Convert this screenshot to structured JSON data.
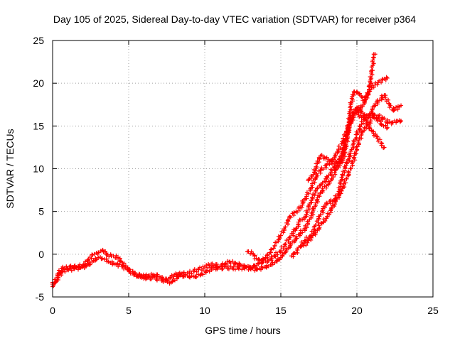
{
  "chart_data": {
    "type": "scatter",
    "title": "Day 105 of 2025, Sidereal Day-to-day VTEC variation (SDTVAR) for receiver p364",
    "xlabel": "GPS time / hours",
    "ylabel": "SDTVAR / TECUs",
    "xlim": [
      0,
      25
    ],
    "ylim": [
      -5,
      25
    ],
    "xticks": [
      0,
      5,
      10,
      15,
      20,
      25
    ],
    "yticks": [
      -5,
      0,
      5,
      10,
      15,
      20,
      25
    ],
    "grid": true,
    "marker": "plus",
    "color": "#ff0000",
    "series": [
      {
        "x": [
          0.0,
          0.2,
          0.4,
          0.6,
          0.8,
          1.0,
          1.3,
          1.6,
          2.0,
          2.3,
          2.6,
          3.0,
          3.3,
          3.6,
          4.0,
          4.3,
          4.6,
          5.0,
          5.3,
          5.6,
          6.0,
          6.3,
          6.6,
          7.0,
          7.3,
          7.6,
          8.0,
          8.3,
          8.6,
          9.0,
          9.3,
          9.6,
          10.0,
          10.3,
          10.6,
          11.0,
          11.3,
          11.6,
          12.0,
          12.3,
          12.6,
          13.0,
          13.3,
          13.6,
          14.0,
          14.3,
          14.6,
          15.0,
          15.3,
          15.6,
          16.0,
          16.3,
          16.6,
          17.0,
          17.3,
          17.6,
          18.0,
          18.3,
          18.6,
          19.0,
          19.3,
          19.6,
          20.0,
          20.3,
          20.6,
          21.0,
          21.3,
          21.6,
          22.0
        ],
        "y": [
          -3.8,
          -3.3,
          -2.2,
          -1.7,
          -1.6,
          -1.6,
          -1.5,
          -1.5,
          -1.3,
          -0.8,
          -0.1,
          0.2,
          0.5,
          -0.1,
          -0.2,
          -0.4,
          -1.0,
          -1.8,
          -2.2,
          -2.5,
          -2.6,
          -2.5,
          -2.4,
          -2.6,
          -2.9,
          -2.9,
          -2.4,
          -2.3,
          -2.3,
          -2.2,
          -2.0,
          -1.8,
          -1.5,
          -1.3,
          -1.3,
          -1.4,
          -1.2,
          -0.9,
          -1.0,
          -1.2,
          -1.4,
          -1.5,
          -1.3,
          -1.0,
          -0.8,
          -0.6,
          -0.2,
          0.4,
          1.2,
          2.0,
          3.0,
          4.0,
          4.3,
          6.3,
          7.5,
          8.0,
          8.8,
          9.6,
          10.6,
          11.5,
          13.5,
          15.6,
          16.7,
          16.0,
          15.8,
          16.4,
          15.9,
          15.2,
          14.8
        ]
      },
      {
        "x": [
          0.0,
          0.3,
          0.6,
          1.0,
          1.4,
          1.8,
          2.2,
          2.6,
          3.0,
          3.4,
          3.8,
          4.2,
          4.6,
          5.0,
          5.4,
          5.8,
          6.2,
          6.6,
          7.0,
          7.4,
          7.8,
          8.2,
          8.6,
          9.0,
          9.4,
          9.8,
          10.2,
          10.6,
          11.0,
          11.4,
          11.8,
          12.2,
          12.6,
          13.0,
          13.4,
          13.8,
          14.2,
          14.6,
          15.0,
          15.3,
          15.6,
          16.0,
          16.3,
          16.6,
          17.0,
          17.3,
          17.6,
          18.0,
          18.3,
          18.6,
          19.0,
          19.2,
          19.5,
          19.8,
          20.1,
          20.4,
          20.7,
          21.0,
          21.3,
          21.6,
          21.8
        ],
        "y": [
          -3.3,
          -3.0,
          -2.0,
          -1.8,
          -1.7,
          -1.6,
          -1.4,
          -0.9,
          -0.4,
          -0.6,
          -1.0,
          -1.2,
          -1.4,
          -1.9,
          -2.3,
          -2.6,
          -2.8,
          -2.7,
          -2.9,
          -3.1,
          -3.3,
          -2.6,
          -2.5,
          -2.6,
          -2.6,
          -2.3,
          -1.9,
          -1.6,
          -1.6,
          -1.5,
          -1.6,
          -1.6,
          -1.6,
          -1.7,
          -1.8,
          -1.6,
          -1.4,
          -1.0,
          -0.4,
          0.2,
          1.0,
          1.8,
          2.5,
          3.0,
          4.5,
          6.0,
          7.2,
          8.0,
          8.6,
          9.8,
          11.0,
          13.0,
          15.0,
          16.5,
          17.2,
          16.5,
          15.2,
          14.4,
          13.8,
          13.0,
          12.5
        ]
      },
      {
        "x": [
          12.8,
          13.1,
          13.4,
          13.7,
          14.0,
          14.3,
          14.6,
          15.0,
          15.3,
          15.6,
          16.0,
          16.3,
          16.6,
          17.0,
          17.3,
          17.6,
          18.0,
          18.3,
          18.6,
          19.0,
          19.3,
          19.6,
          19.9,
          20.2,
          20.5,
          20.8,
          21.0,
          21.2,
          21.4,
          21.7,
          22.0
        ],
        "y": [
          0.3,
          0.1,
          -0.5,
          -0.8,
          -0.4,
          0.2,
          1.0,
          2.2,
          3.2,
          4.4,
          5.0,
          5.5,
          6.5,
          7.8,
          9.0,
          9.8,
          10.4,
          10.8,
          11.6,
          12.9,
          14.4,
          16.0,
          17.0,
          16.8,
          17.8,
          19.0,
          19.5,
          19.8,
          20.1,
          20.4,
          20.6
        ]
      },
      {
        "x": [
          16.8,
          17.0,
          17.2,
          17.4,
          17.6,
          17.9,
          18.2,
          18.5,
          18.8,
          19.1,
          19.4,
          19.6,
          19.8,
          20.0,
          20.2,
          20.5,
          20.8,
          21.0,
          21.1,
          21.2
        ],
        "y": [
          8.6,
          8.9,
          9.6,
          10.6,
          11.5,
          11.2,
          10.9,
          10.6,
          10.6,
          11.0,
          13.8,
          17.5,
          19.0,
          19.0,
          18.6,
          18.0,
          19.2,
          21.5,
          23.0,
          23.4
        ]
      },
      {
        "x": [
          15.7,
          16.0,
          16.3,
          16.6,
          17.0,
          17.3,
          17.6,
          18.0,
          18.4,
          18.8,
          19.0,
          19.3,
          19.6,
          19.8,
          20.0,
          20.3,
          20.6,
          20.9,
          21.2,
          21.5,
          21.8,
          22.1,
          22.4,
          22.7,
          22.9
        ],
        "y": [
          -0.2,
          0.2,
          1.0,
          1.6,
          2.2,
          3.4,
          4.6,
          6.0,
          6.2,
          7.0,
          9.0,
          10.4,
          11.8,
          13.0,
          14.0,
          15.2,
          16.0,
          16.4,
          17.6,
          18.0,
          18.6,
          17.6,
          16.8,
          17.2,
          17.4
        ]
      },
      {
        "x": [
          16.5,
          16.8,
          17.1,
          17.4,
          17.7,
          18.0,
          18.3,
          18.6,
          19.0,
          19.3,
          19.6,
          19.9,
          20.2,
          20.5,
          20.8,
          21.1,
          21.4,
          21.7,
          22.0,
          22.3,
          22.6,
          22.9
        ],
        "y": [
          1.0,
          1.6,
          2.2,
          2.8,
          3.6,
          4.2,
          5.2,
          6.2,
          7.4,
          8.8,
          10.0,
          11.8,
          13.6,
          14.8,
          15.4,
          16.0,
          16.2,
          16.0,
          15.4,
          15.4,
          15.6,
          15.6
        ]
      }
    ]
  }
}
